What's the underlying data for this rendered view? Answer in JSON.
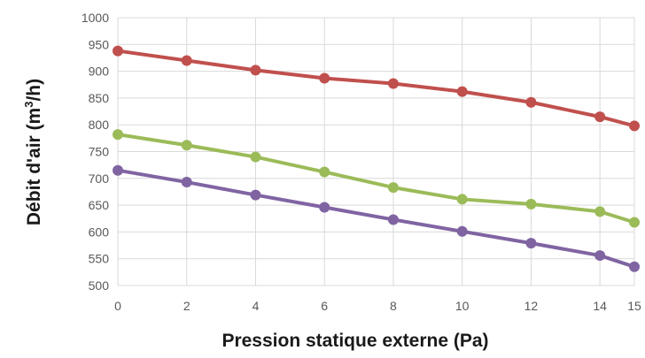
{
  "chart_data": {
    "type": "line",
    "title": "",
    "xlabel": "Pression statique externe (Pa)",
    "ylabel_main": "Débit d'air (m",
    "ylabel_sup": "3",
    "ylabel_end": "/h)",
    "x": [
      0,
      2,
      4,
      6,
      8,
      10,
      12,
      14,
      15
    ],
    "x_tick_labels": [
      "0",
      "2",
      "4",
      "6",
      "8",
      "10",
      "12",
      "14",
      "15"
    ],
    "y_ticks": [
      500,
      550,
      600,
      650,
      700,
      750,
      800,
      850,
      900,
      950,
      1000
    ],
    "ylim": [
      500,
      1000
    ],
    "grid": true,
    "legend": "none",
    "series": [
      {
        "color": "#c0504d",
        "values": [
          938,
          920,
          902,
          887,
          877,
          862,
          842,
          815,
          798
        ]
      },
      {
        "color": "#9bbb59",
        "values": [
          782,
          762,
          740,
          712,
          683,
          661,
          652,
          638,
          618
        ]
      },
      {
        "color": "#8064a2",
        "values": [
          715,
          693,
          669,
          646,
          623,
          601,
          579,
          556,
          535
        ]
      }
    ]
  }
}
